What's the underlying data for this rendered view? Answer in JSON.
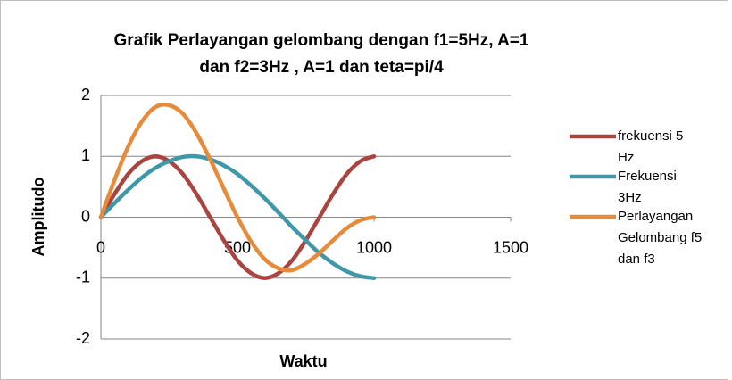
{
  "chart_data": {
    "type": "line",
    "title_lines": [
      "Grafik Perlayangan gelombang dengan f1=5Hz, A=1",
      "dan f2=3Hz , A=1 dan teta=pi/4"
    ],
    "x_label": "Waktu",
    "y_label": "Amplitudo",
    "x": [
      0,
      50,
      100,
      150,
      200,
      250,
      300,
      350,
      400,
      450,
      500,
      550,
      600,
      650,
      700,
      750,
      800,
      850,
      900,
      950,
      1000
    ],
    "series": [
      {
        "name": "frekuensi 5 Hz",
        "color": "#a9443f",
        "values": [
          0,
          0.38,
          0.71,
          0.92,
          1,
          0.92,
          0.71,
          0.38,
          0,
          -0.38,
          -0.71,
          -0.92,
          -1,
          -0.92,
          -0.71,
          -0.38,
          0,
          0.38,
          0.71,
          0.92,
          1
        ]
      },
      {
        "name": "Frekuensi 3Hz",
        "color": "#4097a8",
        "values": [
          0,
          0.23,
          0.45,
          0.65,
          0.81,
          0.92,
          0.99,
          1,
          0.95,
          0.85,
          0.71,
          0.52,
          0.31,
          0.08,
          -0.16,
          -0.38,
          -0.59,
          -0.76,
          -0.89,
          -0.97,
          -1
        ]
      },
      {
        "name": "Perlayangan Gelombang f5 dan f3",
        "color": "#e58b3a",
        "values": [
          0,
          0.61,
          1.16,
          1.57,
          1.81,
          1.84,
          1.7,
          1.38,
          0.95,
          0.47,
          0,
          -0.4,
          -0.69,
          -0.84,
          -0.87,
          -0.76,
          -0.59,
          -0.38,
          -0.18,
          -0.05,
          0
        ]
      }
    ],
    "xlim": [
      0,
      1500
    ],
    "xticks": [
      0,
      500,
      1000,
      1500
    ],
    "ylim": [
      -2,
      2
    ],
    "yticks": [
      -2,
      -1,
      0,
      1,
      2
    ],
    "grid": true,
    "legend": "right"
  }
}
